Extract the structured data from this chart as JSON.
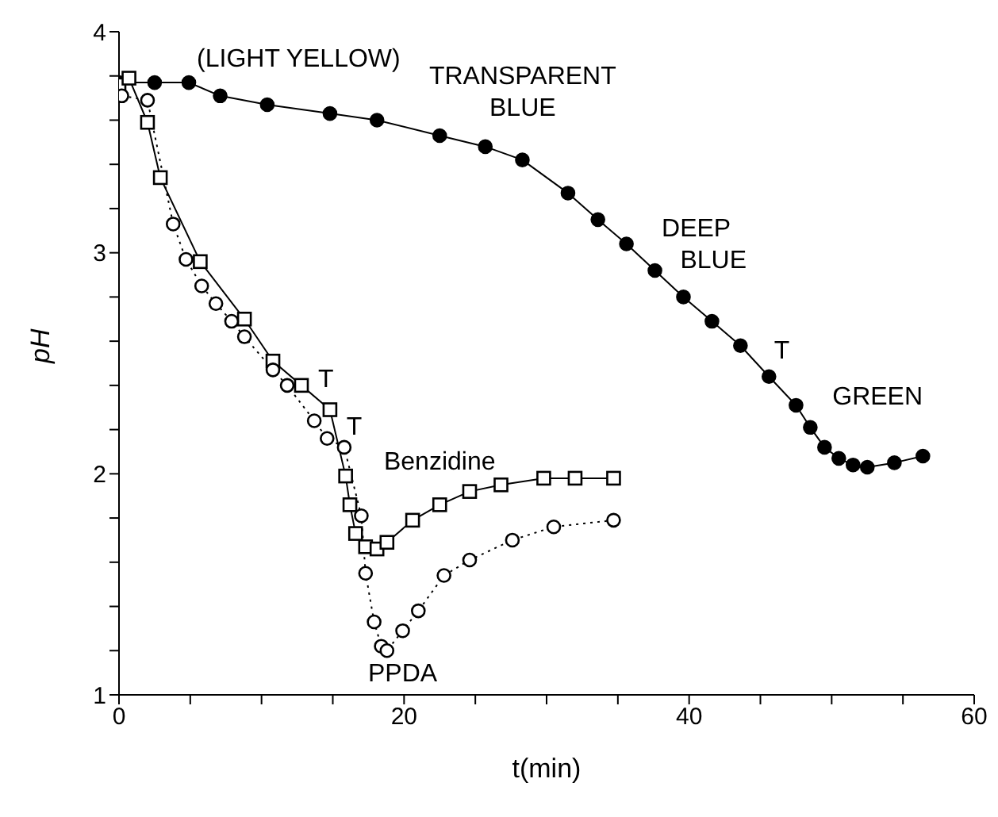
{
  "chart_data": {
    "type": "line",
    "xlabel": "t(min)",
    "ylabel": "pH",
    "xlim": [
      0,
      60
    ],
    "ylim": [
      1,
      4
    ],
    "xticks": [
      0,
      {
        "value": 5,
        "label": null
      },
      {
        "value": 10,
        "label": null
      },
      {
        "value": 15,
        "label": null
      },
      20,
      {
        "value": 25,
        "label": null
      },
      {
        "value": 30,
        "label": null
      },
      {
        "value": 35,
        "label": null
      },
      40,
      {
        "value": 45,
        "label": null
      },
      {
        "value": 50,
        "label": null
      },
      {
        "value": 55,
        "label": null
      },
      60
    ],
    "yticks": [
      1,
      {
        "value": 1.2,
        "label": null
      },
      {
        "value": 1.4,
        "label": null
      },
      {
        "value": 1.6,
        "label": null
      },
      {
        "value": 1.8,
        "label": null
      },
      2,
      {
        "value": 2.2,
        "label": null
      },
      {
        "value": 2.4,
        "label": null
      },
      {
        "value": 2.6,
        "label": null
      },
      {
        "value": 2.8,
        "label": null
      },
      3,
      {
        "value": 3.2,
        "label": null
      },
      {
        "value": 3.4,
        "label": null
      },
      {
        "value": 3.6,
        "label": null
      },
      {
        "value": 3.8,
        "label": null
      },
      4
    ],
    "grid": false,
    "legend": false,
    "series": [
      {
        "color": "#000000",
        "marker": "circle",
        "line_style": "solid",
        "x": [
          0,
          2.5,
          4.9,
          7.1,
          10.4,
          14.8,
          18.1,
          22.5,
          25.7,
          28.3,
          31.5,
          33.6,
          35.6,
          37.6,
          39.6,
          41.6,
          43.6,
          45.6,
          47.5,
          48.5,
          49.5,
          50.5,
          51.5,
          52.5,
          54.4,
          56.4
        ],
        "values": [
          3.77,
          3.77,
          3.77,
          3.71,
          3.67,
          3.63,
          3.6,
          3.53,
          3.48,
          3.42,
          3.27,
          3.15,
          3.04,
          2.92,
          2.8,
          2.69,
          2.58,
          2.44,
          2.31,
          2.21,
          2.12,
          2.07,
          2.04,
          2.03,
          2.05,
          2.08
        ]
      },
      {
        "name": "Benzidine",
        "color": "#000000",
        "marker": "square",
        "line_style": "solid",
        "x": [
          0,
          0.7,
          2,
          2.9,
          5.7,
          8.8,
          10.8,
          12.8,
          14.8,
          15.9,
          16.2,
          16.6,
          17.3,
          18.1,
          18.8,
          20.6,
          22.5,
          24.6,
          26.8,
          29.8,
          32,
          34.7
        ],
        "values": [
          3.76,
          3.79,
          3.59,
          3.34,
          2.96,
          2.7,
          2.51,
          2.4,
          2.29,
          1.99,
          1.86,
          1.73,
          1.67,
          1.66,
          1.69,
          1.79,
          1.86,
          1.92,
          1.95,
          1.98,
          1.98,
          1.98
        ]
      },
      {
        "name": "PPDA",
        "color": "#000000",
        "marker": "circle",
        "line_style": "dotted",
        "x": [
          0.2,
          2,
          3.8,
          4.7,
          5.8,
          6.8,
          7.9,
          8.8,
          10.8,
          11.8,
          13.7,
          14.6,
          15.8,
          17,
          17.3,
          17.9,
          18.4,
          18.8,
          19.9,
          21,
          22.8,
          24.6,
          27.6,
          30.5,
          34.7
        ],
        "values": [
          3.71,
          3.69,
          3.13,
          2.97,
          2.85,
          2.77,
          2.69,
          2.62,
          2.47,
          2.4,
          2.24,
          2.16,
          2.12,
          1.81,
          1.55,
          1.33,
          1.22,
          1.2,
          1.29,
          1.38,
          1.54,
          1.61,
          1.7,
          1.76,
          1.79
        ]
      }
    ],
    "annotations": [
      "(LIGHT YELLOW)",
      "TRANSPARENT",
      "BLUE",
      "DEEP",
      "BLUE",
      "T",
      "GREEN",
      "T",
      "T"
    ]
  }
}
